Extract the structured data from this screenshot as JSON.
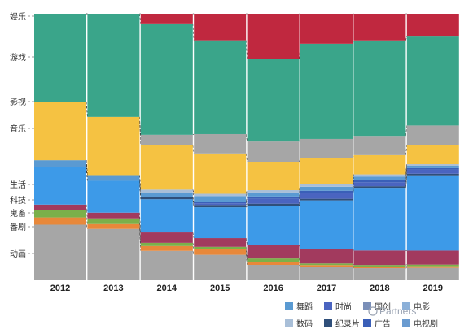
{
  "chart_data": {
    "type": "bar",
    "stacked": true,
    "normalized": true,
    "categories": [
      "2012",
      "2013",
      "2014",
      "2015",
      "2016",
      "2017",
      "2018",
      "2019"
    ],
    "ylim": [
      0,
      100
    ],
    "series": [
      {
        "name": "动画",
        "color": "#a6a6a6",
        "values": [
          20.5,
          18.7,
          10.7,
          9.3,
          5.5,
          4.8,
          4.3,
          4.4
        ]
      },
      {
        "name": "番剧",
        "color": "#e8883a",
        "values": [
          2.7,
          1.8,
          1.8,
          2.1,
          1.2,
          0.6,
          0.6,
          0.6
        ]
      },
      {
        "name": "鬼畜",
        "color": "#7bb04a",
        "values": [
          2.7,
          2.1,
          1.2,
          0.9,
          1.2,
          0.6,
          0.6,
          0.6
        ]
      },
      {
        "name": "科技",
        "color": "#a23a5e",
        "values": [
          2.1,
          2.1,
          3.9,
          3.3,
          5.2,
          5.5,
          5.5,
          5.3
        ]
      },
      {
        "name": "生活",
        "color": "#3d9ae8",
        "values": [
          14.2,
          11.8,
          12.4,
          11.6,
          14.5,
          18.1,
          23.8,
          28.4
        ]
      },
      {
        "name": "纪录片",
        "color": "#2f4f7a",
        "values": [
          0,
          0,
          0.9,
          0.9,
          0.9,
          0.6,
          0.6,
          0.6
        ]
      },
      {
        "name": "时尚",
        "color": "#4a64c0",
        "values": [
          0,
          0,
          0,
          0.6,
          1.8,
          2.1,
          1.5,
          1.5
        ]
      },
      {
        "name": "广告",
        "color": "#3a5fb8",
        "values": [
          0,
          0,
          0,
          0.6,
          0.9,
          0.9,
          0.9,
          0.6
        ]
      },
      {
        "name": "舞蹈",
        "color": "#5a9ad2",
        "values": [
          2.4,
          2.1,
          1.5,
          2.1,
          1.5,
          1.5,
          1.2,
          0.9
        ]
      },
      {
        "name": "数码",
        "color": "#a9bfd8",
        "values": [
          0,
          0,
          1.2,
          0.9,
          0.9,
          0.9,
          0.9,
          0.6
        ]
      },
      {
        "name": "电视剧",
        "color": "#6a9bd0",
        "values": [
          0,
          0,
          0,
          0,
          0,
          0,
          0,
          0
        ]
      },
      {
        "name": "音乐",
        "color": "#f5c242",
        "values": [
          21.8,
          21.5,
          16.6,
          15.2,
          10.7,
          9.7,
          7.3,
          7.3
        ]
      },
      {
        "name": "影视",
        "color": "#a6a6a6",
        "values": [
          0,
          0,
          3.9,
          7.3,
          7.6,
          7.3,
          7.3,
          7.3
        ]
      },
      {
        "name": "游戏",
        "color": "#3aa58a",
        "values": [
          32.9,
          38.1,
          41.6,
          35.3,
          31.0,
          35.6,
          36.2,
          33.8
        ]
      },
      {
        "name": "娱乐",
        "color": "#c0283f",
        "values": [
          0,
          0,
          3.6,
          10.0,
          17.0,
          11.2,
          10.1,
          8.3
        ]
      }
    ],
    "y_category_labels": [
      "娱乐",
      "游戏",
      "影视",
      "音乐",
      "生活",
      "科技",
      "鬼畜",
      "番剧",
      "动画"
    ],
    "legend": {
      "placement": "bottom-right",
      "entries": [
        {
          "name": "舞蹈",
          "color": "#5a9ad2"
        },
        {
          "name": "时尚",
          "color": "#4a64c0"
        },
        {
          "name": "国创",
          "color": "#7a8fb8"
        },
        {
          "name": "电影",
          "color": "#8cb0d8"
        },
        {
          "name": "数码",
          "color": "#a9bfd8"
        },
        {
          "name": "纪录片",
          "color": "#2f4f7a"
        },
        {
          "name": "广告",
          "color": "#3a5fb8"
        },
        {
          "name": "电视剧",
          "color": "#6a9bd0"
        }
      ]
    },
    "watermark": "Partners",
    "grid": false
  }
}
